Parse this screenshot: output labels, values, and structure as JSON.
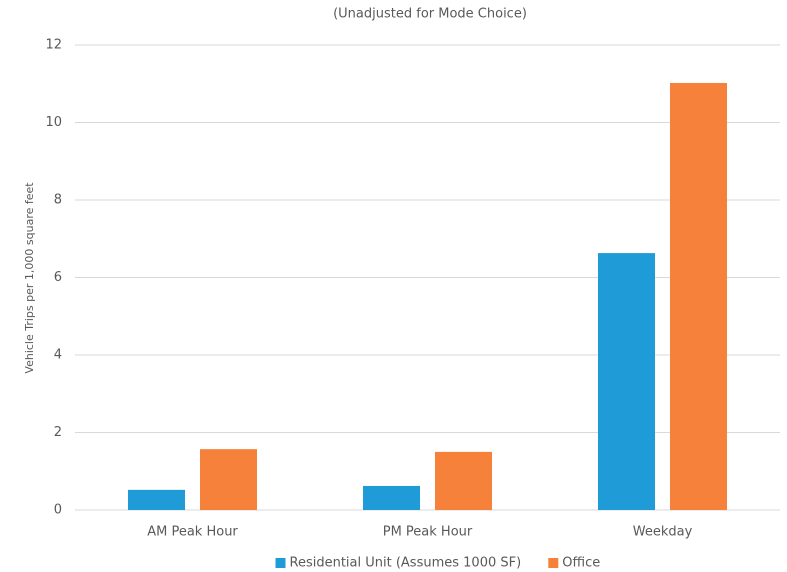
{
  "chart_data": {
    "type": "bar",
    "title": "(Unadjusted for Mode Choice)",
    "ylabel": "Vehicle Trips per 1,000 square feet",
    "categories": [
      "AM Peak Hour",
      "PM Peak Hour",
      "Weekday"
    ],
    "series": [
      {
        "name": "Residential Unit (Assumes 1000 SF)",
        "color": "#1f9bd7",
        "values": [
          0.52,
          0.62,
          6.63
        ]
      },
      {
        "name": "Office",
        "color": "#f5813a",
        "values": [
          1.57,
          1.5,
          11.02
        ]
      }
    ],
    "ylim": [
      0,
      12
    ],
    "yticks": [
      0,
      2,
      4,
      6,
      8,
      10,
      12
    ],
    "grid": true,
    "legend": "bottom"
  }
}
